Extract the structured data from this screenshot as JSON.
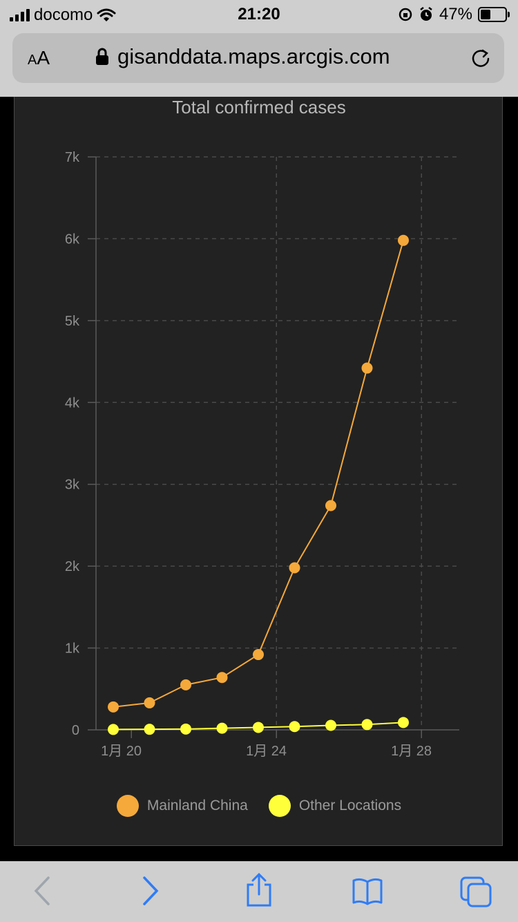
{
  "status_bar": {
    "carrier": "docomo",
    "time": "21:20",
    "battery": "47%",
    "battery_level": 0.47
  },
  "browser": {
    "text_size_small": "A",
    "text_size_large": "A",
    "url": "gisanddata.maps.arcgis.com"
  },
  "chart_data": {
    "type": "line",
    "title": "Total confirmed cases",
    "xlabel": "",
    "ylabel": "",
    "x": [
      "1月 20",
      "1月 21",
      "1月 22",
      "1月 23",
      "1月 24",
      "1月 25",
      "1月 26",
      "1月 27",
      "1月 28"
    ],
    "x_tick_labels": [
      "1月 20",
      "1月 24",
      "1月 28"
    ],
    "y_tick_labels": [
      "0",
      "1k",
      "2k",
      "3k",
      "4k",
      "5k",
      "6k",
      "7k"
    ],
    "ylim": [
      0,
      7000
    ],
    "grid": true,
    "legend_position": "bottom",
    "series": [
      {
        "name": "Mainland China",
        "color": "#f5a93a",
        "values": [
          280,
          330,
          550,
          640,
          920,
          1980,
          2740,
          4420,
          5980
        ]
      },
      {
        "name": "Other Locations",
        "color": "#ffff3a",
        "values": [
          5,
          7,
          10,
          20,
          30,
          40,
          55,
          65,
          90
        ]
      }
    ]
  }
}
